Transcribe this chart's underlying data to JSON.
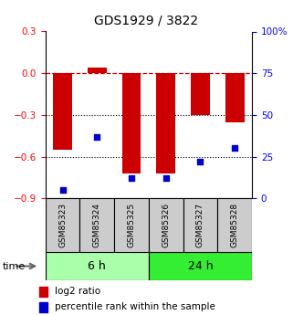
{
  "title": "GDS1929 / 3822",
  "samples": [
    "GSM85323",
    "GSM85324",
    "GSM85325",
    "GSM85326",
    "GSM85327",
    "GSM85328"
  ],
  "log2_ratio": [
    -0.55,
    0.04,
    -0.72,
    -0.72,
    -0.3,
    -0.35
  ],
  "percentile_rank": [
    5,
    37,
    12,
    12,
    22,
    30
  ],
  "ylim_left": [
    -0.9,
    0.3
  ],
  "ylim_right": [
    0,
    100
  ],
  "yticks_left": [
    -0.9,
    -0.6,
    -0.3,
    0,
    0.3
  ],
  "yticks_right": [
    0,
    25,
    50,
    75,
    100
  ],
  "hlines_dotted": [
    -0.3,
    -0.6
  ],
  "groups": [
    {
      "label": "6 h",
      "indices": [
        0,
        1,
        2
      ],
      "color": "#aaffaa"
    },
    {
      "label": "24 h",
      "indices": [
        3,
        4,
        5
      ],
      "color": "#33ee33"
    }
  ],
  "time_label": "time",
  "bar_color": "#cc0000",
  "dot_color": "#0000cc",
  "hline_color": "#cc0000",
  "dotline_color": "#000000",
  "bar_width": 0.55,
  "sample_box_color": "#cccccc",
  "title_fontsize": 10,
  "tick_fontsize": 7.5,
  "sample_fontsize": 6.5,
  "group_fontsize": 9,
  "legend_fontsize": 7.5
}
